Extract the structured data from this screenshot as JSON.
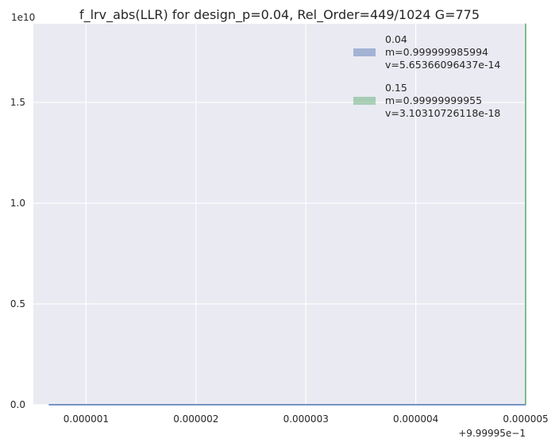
{
  "chart_data": {
    "type": "area",
    "title": "f_lrv_abs(LLR) for design_p=0.04, Rel_Order=449/1024 G=775",
    "xlabel": "",
    "ylabel": "",
    "x_offset_label": "+9.99995e−1",
    "y_scale_label": "1e10",
    "x_ticks": [
      {
        "value": 1e-06,
        "label": "0.000001"
      },
      {
        "value": 2e-06,
        "label": "0.000002"
      },
      {
        "value": 3e-06,
        "label": "0.000003"
      },
      {
        "value": 4e-06,
        "label": "0.000004"
      },
      {
        "value": 5e-06,
        "label": "0.000005"
      }
    ],
    "y_ticks": [
      {
        "value": 0,
        "label": "0.0"
      },
      {
        "value": 0.5,
        "label": "0.5"
      },
      {
        "value": 1.0,
        "label": "1.0"
      },
      {
        "value": 1.5,
        "label": "1.5"
      }
    ],
    "xlim": [
      5.2e-07,
      5e-06
    ],
    "ylim": [
      0,
      1.89
    ],
    "grid": true,
    "legend_position": "top-right",
    "series": [
      {
        "name": "0.04",
        "legend_lines": [
          "0.04",
          " m=0.999999985994",
          " v=5.65366096437e-14"
        ],
        "color": "#4C72B0",
        "x": [
          6.6e-07,
          4.9995e-06,
          5e-06
        ],
        "y": [
          0.0,
          0.0,
          0.0
        ]
      },
      {
        "name": "0.15",
        "legend_lines": [
          "0.15",
          " m=0.99999999955",
          " v=3.10310726118e-18"
        ],
        "color": "#55A868",
        "x": [
          4.9993e-06,
          4.9994e-06,
          4.9996e-06,
          4.9998e-06,
          5e-06
        ],
        "y": [
          0.0,
          0.29,
          0.29,
          1.89,
          1.89
        ]
      }
    ]
  }
}
